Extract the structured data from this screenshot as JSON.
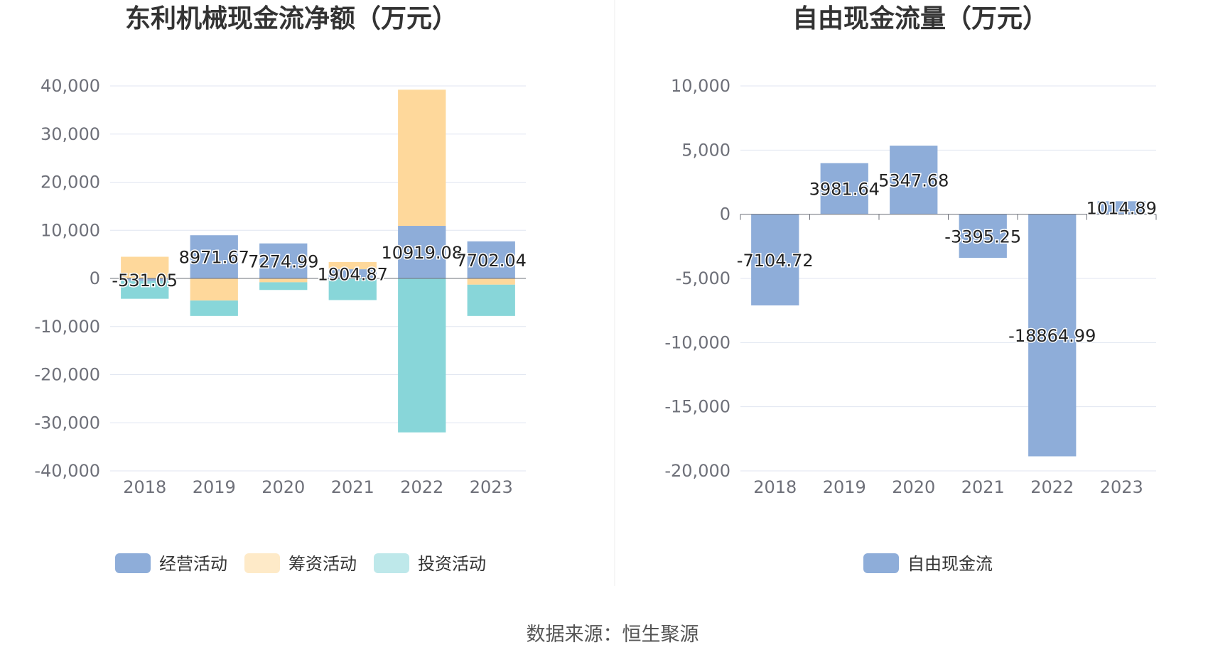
{
  "colors": {
    "operating": "#8eadd9",
    "financing": "#fed89b",
    "investing": "#88d6d9",
    "free_cash_flow": "#8eadd9",
    "grid": "#e0e6f1",
    "axis": "#6e7079",
    "divider": "#eeeeee"
  },
  "source_text": "数据来源：恒生聚源",
  "chart_data": [
    {
      "type": "bar",
      "stacked": true,
      "title": "东利机械现金流净额（万元）",
      "categories": [
        "2018",
        "2019",
        "2020",
        "2021",
        "2022",
        "2023"
      ],
      "ylim": [
        -40000,
        40000
      ],
      "yticks": [
        40000,
        30000,
        20000,
        10000,
        0,
        -10000,
        -20000,
        -30000,
        -40000
      ],
      "ytick_labels": [
        "40,000",
        "30,000",
        "20,000",
        "10,000",
        "0",
        "-10,000",
        "-20,000",
        "-30,000",
        "-40,000"
      ],
      "grid": true,
      "legend_position": "bottom",
      "series": [
        {
          "name": "经营活动",
          "color_key": "operating",
          "values": [
            -531.05,
            8971.67,
            7274.99,
            1904.87,
            10919.08,
            7702.04
          ],
          "labels": [
            "-531.05",
            "8971.67",
            "7274.99",
            "1904.87",
            "10919.08",
            "7702.04"
          ]
        },
        {
          "name": "筹资活动",
          "color_key": "financing",
          "values": [
            4500,
            -4600,
            -800,
            1500,
            28300,
            -1300
          ]
        },
        {
          "name": "投资活动",
          "color_key": "investing",
          "values": [
            -3700,
            -3200,
            -1600,
            -4500,
            -32000,
            -6500
          ]
        }
      ]
    },
    {
      "type": "bar",
      "title": "自由现金流量（万元）",
      "categories": [
        "2018",
        "2019",
        "2020",
        "2021",
        "2022",
        "2023"
      ],
      "ylim": [
        -20000,
        10000
      ],
      "yticks": [
        10000,
        5000,
        0,
        -5000,
        -10000,
        -15000,
        -20000
      ],
      "ytick_labels": [
        "10,000",
        "5,000",
        "0",
        "-5,000",
        "-10,000",
        "-15,000",
        "-20,000"
      ],
      "grid": true,
      "legend_position": "bottom",
      "series": [
        {
          "name": "自由现金流",
          "color_key": "free_cash_flow",
          "values": [
            -7104.72,
            3981.64,
            5347.68,
            -3395.25,
            -18864.99,
            1014.89
          ],
          "labels": [
            "-7104.72",
            "3981.64",
            "5347.68",
            "-3395.25",
            "-18864.99",
            "1014.89"
          ]
        }
      ]
    }
  ]
}
